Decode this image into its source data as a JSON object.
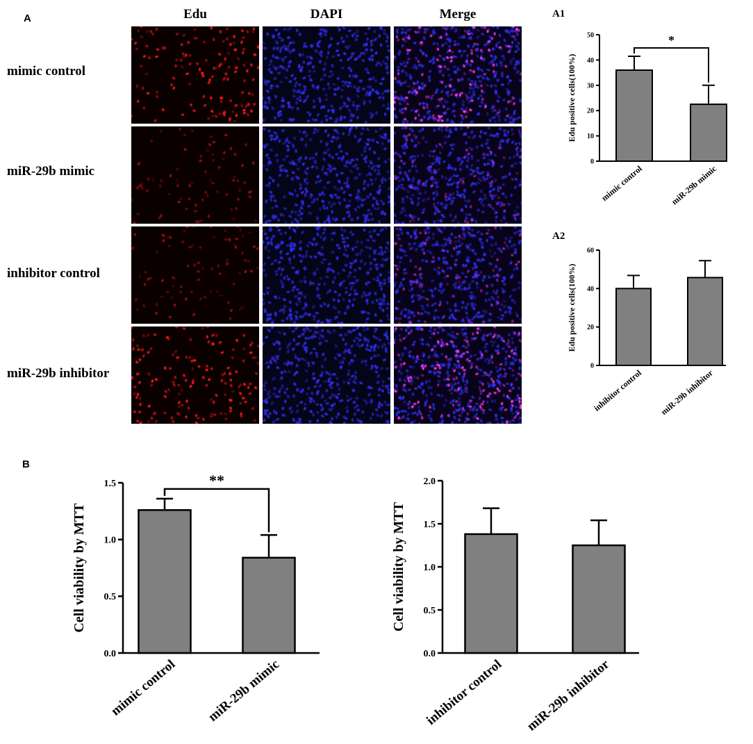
{
  "panel_a": {
    "letter": "A",
    "columns": [
      "Edu",
      "DAPI",
      "Merge"
    ],
    "rows": [
      "mimic control",
      "miR-29b mimic",
      "inhibitor control",
      "miR-29b inhibitor"
    ],
    "channel_colors": {
      "Edu": "#ff1a1a",
      "DAPI": "#2b2bff",
      "Merge": "#ff33ff"
    }
  },
  "panel_b_letter": "B",
  "chart_data": [
    {
      "type": "bar",
      "panel": "A1",
      "categories": [
        "mimic control",
        "miR-29b mimic"
      ],
      "values": [
        36,
        22.5
      ],
      "error": [
        5.5,
        7.5
      ],
      "ylabel": "Edu positive cells(100%)",
      "ylim": [
        0,
        50
      ],
      "yticks": [
        0,
        10,
        20,
        30,
        40,
        50
      ],
      "significance": "*",
      "bar_color": "#808080"
    },
    {
      "type": "bar",
      "panel": "A2",
      "categories": [
        "inhibitor control",
        "miR-29b inhibitor"
      ],
      "values": [
        40,
        45.7
      ],
      "error": [
        6.8,
        8.8
      ],
      "ylabel": "Edu positive cells(100%)",
      "ylim": [
        0,
        60
      ],
      "yticks": [
        0,
        20,
        40,
        60
      ],
      "significance": "",
      "bar_color": "#808080"
    },
    {
      "type": "bar",
      "panel": "B-left",
      "categories": [
        "mimic control",
        "miR-29b mimic"
      ],
      "values": [
        1.26,
        0.84
      ],
      "error": [
        0.1,
        0.2
      ],
      "ylabel": "Cell viability by MTT",
      "ylim": [
        0,
        1.5
      ],
      "yticks": [
        "0.0",
        "0.5",
        "1.0",
        "1.5"
      ],
      "significance": "**",
      "bar_color": "#808080"
    },
    {
      "type": "bar",
      "panel": "B-right",
      "categories": [
        "inhibitor control",
        "miR-29b inhibitor"
      ],
      "values": [
        1.38,
        1.25
      ],
      "error": [
        0.3,
        0.29
      ],
      "ylabel": "Cell viability by MTT",
      "ylim": [
        0,
        2.0
      ],
      "yticks": [
        "0.0",
        "0.5",
        "1.0",
        "1.5",
        "2.0"
      ],
      "significance": "",
      "bar_color": "#808080"
    }
  ]
}
